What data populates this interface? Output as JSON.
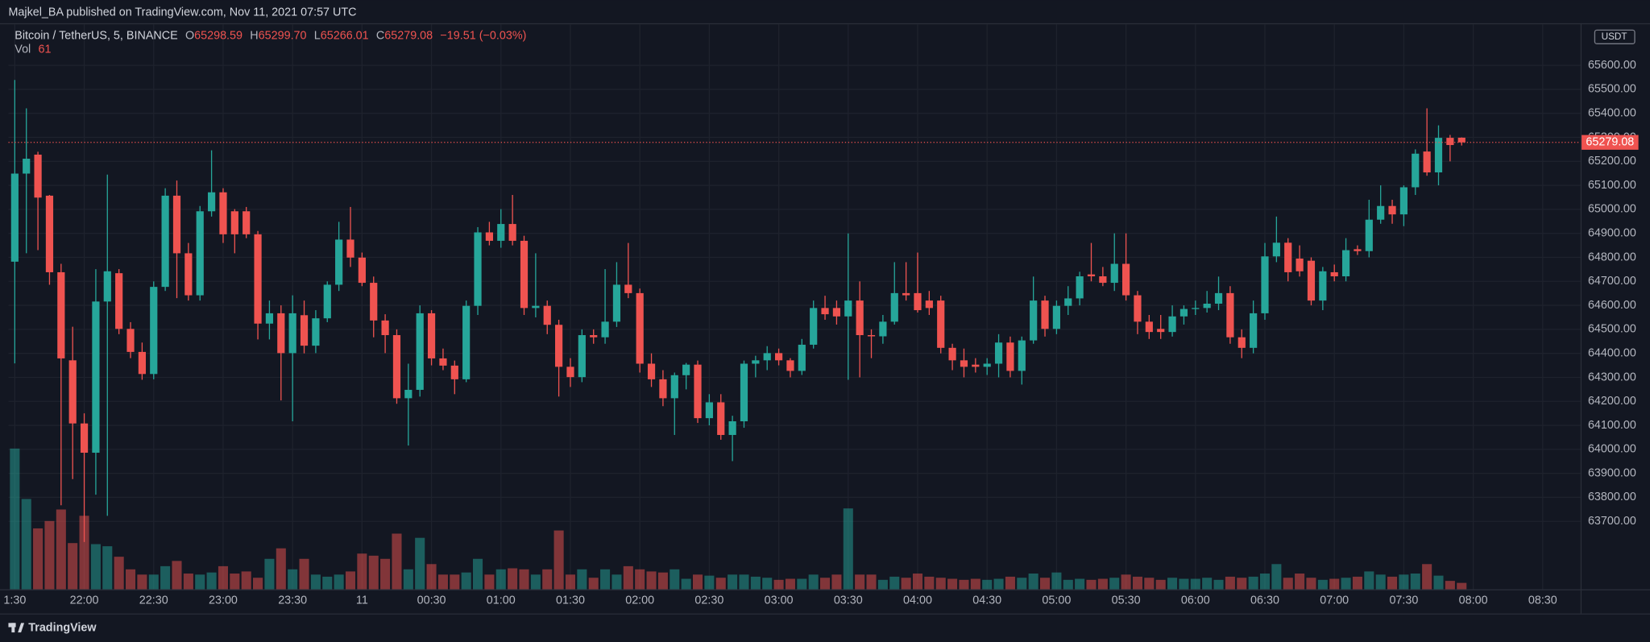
{
  "header": {
    "published": "Majkel_BA published on TradingView.com, Nov 11, 2021 07:57 UTC"
  },
  "footer": {
    "brand": "TradingView"
  },
  "chart_data": {
    "type": "candlestick",
    "title": "Bitcoin / TetherUS, 5, BINANCE",
    "ohlc_labels": [
      "O",
      "H",
      "L",
      "C"
    ],
    "legend_value_labels": [
      "65298.59",
      "65299.70",
      "65266.01",
      "65279.08"
    ],
    "change_label": "−19.51 (−0.03%)",
    "volume_label": "Vol",
    "currency": "USDT",
    "up_color": "#26a69a",
    "down_color": "#ef5350",
    "grid": true,
    "xlim": [
      -0.55,
      135.27
    ],
    "xticks": [
      {
        "value": 0,
        "label": "1:30"
      },
      {
        "value": 6,
        "label": "22:00"
      },
      {
        "value": 12,
        "label": "22:30"
      },
      {
        "value": 18,
        "label": "23:00"
      },
      {
        "value": 24,
        "label": "23:30"
      },
      {
        "value": 30,
        "label": "11"
      },
      {
        "value": 36,
        "label": "00:30"
      },
      {
        "value": 42,
        "label": "01:00"
      },
      {
        "value": 48,
        "label": "01:30"
      },
      {
        "value": 54,
        "label": "02:00"
      },
      {
        "value": 60,
        "label": "02:30"
      },
      {
        "value": 66,
        "label": "03:00"
      },
      {
        "value": 72,
        "label": "03:30"
      },
      {
        "value": 78,
        "label": "04:00"
      },
      {
        "value": 84,
        "label": "04:30"
      },
      {
        "value": 90,
        "label": "05:00"
      },
      {
        "value": 96,
        "label": "05:30"
      },
      {
        "value": 102,
        "label": "06:00"
      },
      {
        "value": 108,
        "label": "06:30"
      },
      {
        "value": 114,
        "label": "07:00"
      },
      {
        "value": 120,
        "label": "07:30"
      },
      {
        "value": 126,
        "label": "08:00"
      },
      {
        "value": 132,
        "label": "08:30"
      }
    ],
    "ylim": [
      63417,
      65771
    ],
    "yticks": [
      {
        "value": 63700,
        "label": "63700.00"
      },
      {
        "value": 63800,
        "label": "63800.00"
      },
      {
        "value": 63900,
        "label": "63900.00"
      },
      {
        "value": 64000,
        "label": "64000.00"
      },
      {
        "value": 64100,
        "label": "64100.00"
      },
      {
        "value": 64200,
        "label": "64200.00"
      },
      {
        "value": 64300,
        "label": "64300.00"
      },
      {
        "value": 64400,
        "label": "64400.00"
      },
      {
        "value": 64500,
        "label": "64500.00"
      },
      {
        "value": 64600,
        "label": "64600.00"
      },
      {
        "value": 64700,
        "label": "64700.00"
      },
      {
        "value": 64800,
        "label": "64800.00"
      },
      {
        "value": 64900,
        "label": "64900.00"
      },
      {
        "value": 65000,
        "label": "65000.00"
      },
      {
        "value": 65100,
        "label": "65100.00"
      },
      {
        "value": 65200,
        "label": "65200.00"
      },
      {
        "value": 65300,
        "label": "65300.00"
      },
      {
        "value": 65400,
        "label": "65400.00"
      },
      {
        "value": 65500,
        "label": "65500.00"
      },
      {
        "value": 65600,
        "label": "65600.00"
      }
    ],
    "volume_ylim": [
      0,
      5380
    ],
    "open": [
      64782,
      65149,
      65228,
      65057,
      64738,
      64371,
      64108,
      63986,
      64616,
      64734,
      64502,
      64406,
      64314,
      64677,
      65057,
      64817,
      64642,
      64992,
      65071,
      64992,
      64992,
      64896,
      64524,
      64567,
      64401,
      64559,
      64432,
      64546,
      64686,
      64874,
      64799,
      64694,
      64537,
      64476,
      64213,
      64248,
      64567,
      64379,
      64349,
      64292,
      64598,
      64904,
      64869,
      64939,
      64869,
      64589,
      64598,
      64519,
      64344,
      64301,
      64476,
      64467,
      64532,
      64686,
      64651,
      64357,
      64292,
      64213,
      64309,
      64353,
      64130,
      64196,
      64060,
      64117,
      64357,
      64371,
      64401,
      64371,
      64327,
      64436,
      64589,
      64589,
      64554,
      64620,
      64476,
      64471,
      64532,
      64651,
      64651,
      64620,
      64620,
      64423,
      64371,
      64353,
      64344,
      64357,
      64445,
      64327,
      64454,
      64620,
      64502,
      64598,
      64629,
      64729,
      64721,
      64694,
      64773,
      64642,
      64532,
      64502,
      64489,
      64554,
      64585,
      64589,
      64607,
      64651,
      64467,
      64423,
      64567,
      64804,
      64861,
      64795,
      64786,
      64620,
      64738,
      64721,
      64834,
      64826,
      64957,
      65014,
      64979,
      65092,
      65241,
      65154,
      65298,
      65298.59
    ],
    "high": [
      65539,
      65421,
      65240,
      65060,
      64773,
      64511,
      64150,
      64751,
      65145,
      64751,
      64530,
      64445,
      64700,
      65088,
      65120,
      64860,
      65014,
      65246,
      65088,
      65001,
      65010,
      64910,
      64620,
      64600,
      64642,
      64620,
      64580,
      64700,
      64948,
      65010,
      64820,
      64720,
      64563,
      64500,
      64357,
      64600,
      64580,
      64420,
      64370,
      64620,
      64926,
      64948,
      65001,
      65060,
      64890,
      64817,
      64620,
      64540,
      64380,
      64500,
      64500,
      64751,
      64780,
      64860,
      64670,
      64400,
      64330,
      64320,
      64360,
      64370,
      64230,
      64230,
      64140,
      64370,
      64390,
      64430,
      64420,
      64380,
      64460,
      64620,
      64640,
      64620,
      64900,
      64700,
      64500,
      64560,
      64780,
      64780,
      64820,
      64660,
      64640,
      64440,
      64420,
      64380,
      64380,
      64480,
      64470,
      64470,
      64720,
      64640,
      64620,
      64680,
      64740,
      64860,
      64760,
      64900,
      64900,
      64660,
      64560,
      64560,
      64600,
      64600,
      64620,
      64660,
      64720,
      64680,
      64500,
      64620,
      64860,
      64970,
      64880,
      64850,
      64800,
      64760,
      64770,
      64880,
      64850,
      65040,
      65100,
      65040,
      65100,
      65250,
      65421,
      65350,
      65310,
      65299.7
    ],
    "low": [
      64358,
      64817,
      64830,
      64686,
      63767,
      63876,
      63614,
      63811,
      63723,
      64480,
      64380,
      64290,
      64292,
      64660,
      64630,
      64620,
      64620,
      64970,
      64860,
      64817,
      64880,
      64458,
      64458,
      64204,
      64117,
      64400,
      64401,
      64530,
      64660,
      64760,
      64680,
      64467,
      64401,
      64190,
      64016,
      64220,
      64350,
      64330,
      64230,
      64280,
      64560,
      64850,
      64840,
      64850,
      64560,
      64550,
      64480,
      64220,
      64260,
      64280,
      64440,
      64440,
      64510,
      64630,
      64320,
      64260,
      64180,
      64060,
      64250,
      64110,
      64100,
      64040,
      63951,
      64090,
      64300,
      64330,
      64350,
      64300,
      64310,
      64420,
      64540,
      64520,
      64290,
      64300,
      64380,
      64440,
      64520,
      64620,
      64570,
      64560,
      64400,
      64330,
      64300,
      64320,
      64310,
      64300,
      64300,
      64270,
      64440,
      64470,
      64480,
      64560,
      64600,
      64700,
      64680,
      64660,
      64620,
      64480,
      64460,
      64460,
      64470,
      64520,
      64560,
      64570,
      64580,
      64440,
      64380,
      64400,
      64540,
      64780,
      64700,
      64720,
      64600,
      64580,
      64700,
      64700,
      64810,
      64800,
      64940,
      64940,
      64930,
      65060,
      65140,
      65100,
      65200,
      65266.01
    ],
    "close": [
      65149,
      65211,
      65049,
      64738,
      64379,
      64108,
      63986,
      64616,
      64742,
      64502,
      64406,
      64314,
      64677,
      65057,
      64817,
      64642,
      64992,
      65071,
      64896,
      64896,
      64896,
      64524,
      64567,
      64401,
      64567,
      64432,
      64546,
      64686,
      64874,
      64799,
      64694,
      64537,
      64476,
      64213,
      64248,
      64567,
      64379,
      64349,
      64292,
      64598,
      64904,
      64869,
      64939,
      64869,
      64589,
      64598,
      64519,
      64344,
      64301,
      64476,
      64467,
      64532,
      64686,
      64651,
      64357,
      64292,
      64213,
      64309,
      64353,
      64130,
      64196,
      64060,
      64117,
      64357,
      64371,
      64401,
      64371,
      64327,
      64436,
      64589,
      64563,
      64554,
      64620,
      64476,
      64471,
      64532,
      64651,
      64642,
      64580,
      64589,
      64423,
      64371,
      64344,
      64344,
      64357,
      64445,
      64327,
      64454,
      64620,
      64502,
      64598,
      64629,
      64721,
      64721,
      64694,
      64773,
      64642,
      64532,
      64489,
      64489,
      64554,
      64585,
      64589,
      64607,
      64651,
      64467,
      64423,
      64567,
      64804,
      64861,
      64738,
      64742,
      64620,
      64742,
      64721,
      64830,
      64826,
      64957,
      65014,
      64979,
      65092,
      65232,
      65154,
      65298,
      65268,
      65279.08
    ],
    "volume": [
      1340,
      860,
      580,
      650,
      760,
      440,
      700,
      430,
      410,
      310,
      190,
      140,
      140,
      220,
      270,
      150,
      140,
      160,
      220,
      150,
      170,
      110,
      290,
      390,
      190,
      290,
      140,
      120,
      140,
      170,
      340,
      320,
      290,
      530,
      190,
      490,
      240,
      140,
      140,
      160,
      290,
      140,
      190,
      200,
      190,
      140,
      190,
      560,
      140,
      190,
      110,
      190,
      140,
      220,
      190,
      170,
      160,
      190,
      100,
      140,
      130,
      110,
      140,
      140,
      120,
      110,
      90,
      100,
      100,
      140,
      110,
      140,
      770,
      140,
      140,
      90,
      120,
      110,
      150,
      120,
      110,
      100,
      90,
      100,
      90,
      100,
      120,
      110,
      150,
      110,
      160,
      90,
      100,
      90,
      100,
      110,
      140,
      120,
      110,
      90,
      110,
      100,
      100,
      110,
      90,
      120,
      110,
      120,
      150,
      240,
      110,
      150,
      110,
      90,
      100,
      110,
      120,
      170,
      140,
      120,
      140,
      150,
      240,
      130,
      80,
      61
    ]
  }
}
